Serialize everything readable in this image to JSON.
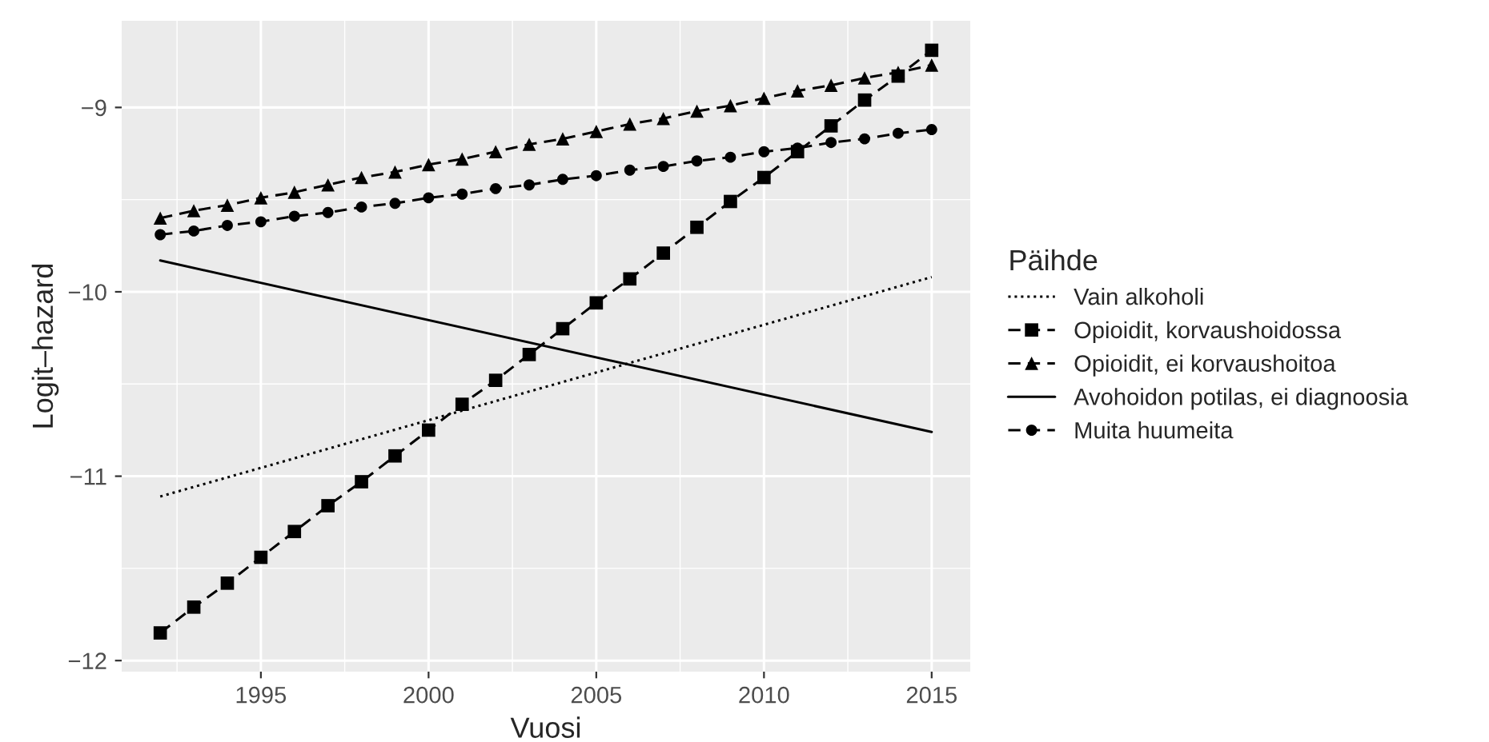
{
  "chart_data": {
    "type": "line",
    "xlabel": "Vuosi",
    "ylabel": "Logit–hazard",
    "legend_title": "Päihde",
    "legend": "right",
    "grid": true,
    "xlim": [
      1990.85,
      2016.15
    ],
    "xticks": [
      1995,
      2000,
      2005,
      2010,
      2015
    ],
    "ylim": [
      -12.06,
      -8.53
    ],
    "yticks": [
      {
        "value": -12,
        "label": "−12"
      },
      {
        "value": -11,
        "label": "−11"
      },
      {
        "value": -10,
        "label": "−10"
      },
      {
        "value": -9,
        "label": "−9"
      }
    ],
    "series": [
      {
        "name": "Vain alkoholi",
        "color": "#000000",
        "line_style": "dotted",
        "marker": "none",
        "x": [
          1992,
          2015
        ],
        "values": [
          -11.11,
          -9.92
        ]
      },
      {
        "name": "Opioidit, korvaushoidossa",
        "color": "#000000",
        "line_style": "dashed",
        "marker": "square",
        "x": [
          1992,
          1993,
          1994,
          1995,
          1996,
          1997,
          1998,
          1999,
          2000,
          2001,
          2002,
          2003,
          2004,
          2005,
          2006,
          2007,
          2008,
          2009,
          2010,
          2011,
          2012,
          2013,
          2014,
          2015
        ],
        "values": [
          -11.85,
          -11.71,
          -11.58,
          -11.44,
          -11.3,
          -11.16,
          -11.03,
          -10.89,
          -10.75,
          -10.61,
          -10.48,
          -10.34,
          -10.2,
          -10.06,
          -9.93,
          -9.79,
          -9.65,
          -9.51,
          -9.38,
          -9.24,
          -9.1,
          -8.96,
          -8.83,
          -8.69
        ]
      },
      {
        "name": "Opioidit, ei korvaushoitoa",
        "color": "#000000",
        "line_style": "dashed",
        "marker": "triangle",
        "x": [
          1992,
          1993,
          1994,
          1995,
          1996,
          1997,
          1998,
          1999,
          2000,
          2001,
          2002,
          2003,
          2004,
          2005,
          2006,
          2007,
          2008,
          2009,
          2010,
          2011,
          2012,
          2013,
          2014,
          2015
        ],
        "values": [
          -9.6,
          -9.56,
          -9.53,
          -9.49,
          -9.46,
          -9.42,
          -9.38,
          -9.35,
          -9.31,
          -9.28,
          -9.24,
          -9.2,
          -9.17,
          -9.13,
          -9.09,
          -9.06,
          -9.02,
          -8.99,
          -8.95,
          -8.91,
          -8.88,
          -8.84,
          -8.81,
          -8.77
        ]
      },
      {
        "name": "Avohoidon potilas, ei diagnoosia",
        "color": "#000000",
        "line_style": "solid",
        "marker": "none",
        "x": [
          1992,
          2015
        ],
        "values": [
          -9.83,
          -10.76
        ]
      },
      {
        "name": "Muita huumeita",
        "color": "#000000",
        "line_style": "dashed",
        "marker": "circle",
        "x": [
          1992,
          1993,
          1994,
          1995,
          1996,
          1997,
          1998,
          1999,
          2000,
          2001,
          2002,
          2003,
          2004,
          2005,
          2006,
          2007,
          2008,
          2009,
          2010,
          2011,
          2012,
          2013,
          2014,
          2015
        ],
        "values": [
          -9.69,
          -9.67,
          -9.64,
          -9.62,
          -9.59,
          -9.57,
          -9.54,
          -9.52,
          -9.49,
          -9.47,
          -9.44,
          -9.42,
          -9.39,
          -9.37,
          -9.34,
          -9.32,
          -9.29,
          -9.27,
          -9.24,
          -9.22,
          -9.19,
          -9.17,
          -9.14,
          -9.12
        ]
      }
    ]
  }
}
